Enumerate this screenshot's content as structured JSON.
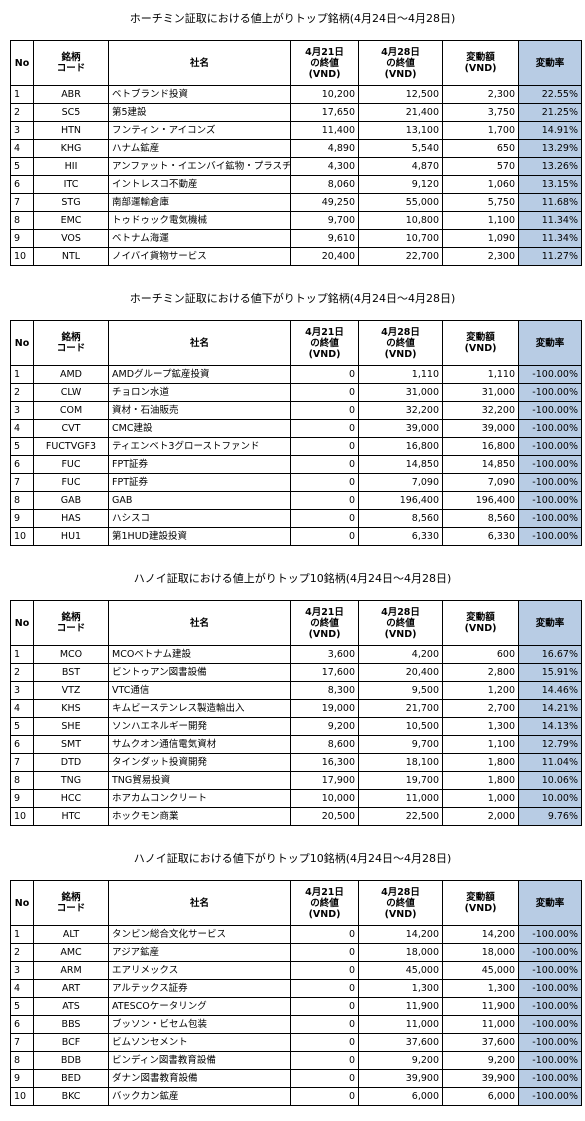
{
  "tables": [
    {
      "title": "ホーチミン証取における値上がりトップ銘柄(4月24日～4月28日)",
      "header": [
        "No",
        "銘柄\nコード",
        "社名",
        "4月21日\nの終値\n(VND)",
        "4月28日\nの終値\n(VND)",
        "変動額\n(VND)",
        "変動率"
      ],
      "rows": [
        [
          "1",
          "ABR",
          "ベトブランド投資",
          "10,200",
          "12,500",
          "2,300",
          "22.55%"
        ],
        [
          "2",
          "SC5",
          "第5建設",
          "17,650",
          "21,400",
          "3,750",
          "21.25%"
        ],
        [
          "3",
          "HTN",
          "フンティン・アイコンズ",
          "11,400",
          "13,100",
          "1,700",
          "14.91%"
        ],
        [
          "4",
          "KHG",
          "ハナム鉱産",
          "4,890",
          "5,540",
          "650",
          "13.29%"
        ],
        [
          "5",
          "HII",
          "アンファット・イエンバイ鉱物・プラスチック",
          "4,300",
          "4,870",
          "570",
          "13.26%"
        ],
        [
          "6",
          "ITC",
          "イントレスコ不動産",
          "8,060",
          "9,120",
          "1,060",
          "13.15%"
        ],
        [
          "7",
          "STG",
          "南部運輸倉庫",
          "49,250",
          "55,000",
          "5,750",
          "11.68%"
        ],
        [
          "8",
          "EMC",
          "トゥドゥック電気機械",
          "9,700",
          "10,800",
          "1,100",
          "11.34%"
        ],
        [
          "9",
          "VOS",
          "ベトナム海運",
          "9,610",
          "10,700",
          "1,090",
          "11.34%"
        ],
        [
          "10",
          "NTL",
          "ノイバイ貨物サービス",
          "20,400",
          "22,700",
          "2,300",
          "11.27%"
        ]
      ]
    },
    {
      "title": "ホーチミン証取における値下がりトップ銘柄(4月24日～4月28日)",
      "header": [
        "No",
        "銘柄\nコード",
        "社名",
        "4月21日\nの終値\n(VND)",
        "4月28日\nの終値\n(VND)",
        "変動額\n(VND)",
        "変動率"
      ],
      "rows": [
        [
          "1",
          "AMD",
          "AMDグループ鉱産投資",
          "0",
          "1,110",
          "1,110",
          "-100.00%"
        ],
        [
          "2",
          "CLW",
          "チョロン水道",
          "0",
          "31,000",
          "31,000",
          "-100.00%"
        ],
        [
          "3",
          "COM",
          "資材・石油販売",
          "0",
          "32,200",
          "32,200",
          "-100.00%"
        ],
        [
          "4",
          "CVT",
          "CMC建設",
          "0",
          "39,000",
          "39,000",
          "-100.00%"
        ],
        [
          "5",
          "FUCTVGF3",
          "ティエンベト3グローストファンド",
          "0",
          "16,800",
          "16,800",
          "-100.00%"
        ],
        [
          "6",
          "FUC",
          "FPT証券",
          "0",
          "14,850",
          "14,850",
          "-100.00%"
        ],
        [
          "7",
          "FUC",
          "FPT証券",
          "0",
          "7,090",
          "7,090",
          "-100.00%"
        ],
        [
          "8",
          "GAB",
          "GAB",
          "0",
          "196,400",
          "196,400",
          "-100.00%"
        ],
        [
          "9",
          "HAS",
          "ハシスコ",
          "0",
          "8,560",
          "8,560",
          "-100.00%"
        ],
        [
          "10",
          "HU1",
          "第1HUD建設投資",
          "0",
          "6,330",
          "6,330",
          "-100.00%"
        ]
      ]
    },
    {
      "title": "ハノイ証取における値上がりトップ10銘柄(4月24日～4月28日)",
      "header": [
        "No",
        "銘柄\nコード",
        "社名",
        "4月21日\nの終値\n(VND)",
        "4月28日\nの終値\n(VND)",
        "変動額\n(VND)",
        "変動率"
      ],
      "rows": [
        [
          "1",
          "MCO",
          "MCOベトナム建設",
          "3,600",
          "4,200",
          "600",
          "16.67%"
        ],
        [
          "2",
          "BST",
          "ビントゥアン図書設備",
          "17,600",
          "20,400",
          "2,800",
          "15.91%"
        ],
        [
          "3",
          "VTZ",
          "VTC通信",
          "8,300",
          "9,500",
          "1,200",
          "14.46%"
        ],
        [
          "4",
          "KHS",
          "キムビーステンレス製造輸出入",
          "19,000",
          "21,700",
          "2,700",
          "14.21%"
        ],
        [
          "5",
          "SHE",
          "ソンハエネルギー開発",
          "9,200",
          "10,500",
          "1,300",
          "14.13%"
        ],
        [
          "6",
          "SMT",
          "サムクオン通信電気資材",
          "8,600",
          "9,700",
          "1,100",
          "12.79%"
        ],
        [
          "7",
          "DTD",
          "タインダット投資開発",
          "16,300",
          "18,100",
          "1,800",
          "11.04%"
        ],
        [
          "8",
          "TNG",
          "TNG貿易投資",
          "17,900",
          "19,700",
          "1,800",
          "10.06%"
        ],
        [
          "9",
          "HCC",
          "ホアカムコンクリート",
          "10,000",
          "11,000",
          "1,000",
          "10.00%"
        ],
        [
          "10",
          "HTC",
          "ホックモン商業",
          "20,500",
          "22,500",
          "2,000",
          "9.76%"
        ]
      ]
    },
    {
      "title": "ハノイ証取における値下がりトップ10銘柄(4月24日～4月28日)",
      "header": [
        "No",
        "銘柄\nコード",
        "社名",
        "4月21日\nの終値\n(VND)",
        "4月28日\nの終値\n(VND)",
        "変動額\n(VND)",
        "変動率"
      ],
      "rows": [
        [
          "1",
          "ALT",
          "タンビン総合文化サービス",
          "0",
          "14,200",
          "14,200",
          "-100.00%"
        ],
        [
          "2",
          "AMC",
          "アジア鉱産",
          "0",
          "18,000",
          "18,000",
          "-100.00%"
        ],
        [
          "3",
          "ARM",
          "エアリメックス",
          "0",
          "45,000",
          "45,000",
          "-100.00%"
        ],
        [
          "4",
          "ART",
          "アルテックス証券",
          "0",
          "1,300",
          "1,300",
          "-100.00%"
        ],
        [
          "5",
          "ATS",
          "ATESCOケータリング",
          "0",
          "11,900",
          "11,900",
          "-100.00%"
        ],
        [
          "6",
          "BBS",
          "ブッソン・ビセム包装",
          "0",
          "11,000",
          "11,000",
          "-100.00%"
        ],
        [
          "7",
          "BCF",
          "ビムソンセメント",
          "0",
          "37,600",
          "37,600",
          "-100.00%"
        ],
        [
          "8",
          "BDB",
          "ビンディン図書教育設備",
          "0",
          "9,200",
          "9,200",
          "-100.00%"
        ],
        [
          "9",
          "BED",
          "ダナン図書教育設備",
          "0",
          "39,900",
          "39,900",
          "-100.00%"
        ],
        [
          "10",
          "BKC",
          "バックカン鉱産",
          "0",
          "6,000",
          "6,000",
          "-100.00%"
        ]
      ]
    }
  ]
}
